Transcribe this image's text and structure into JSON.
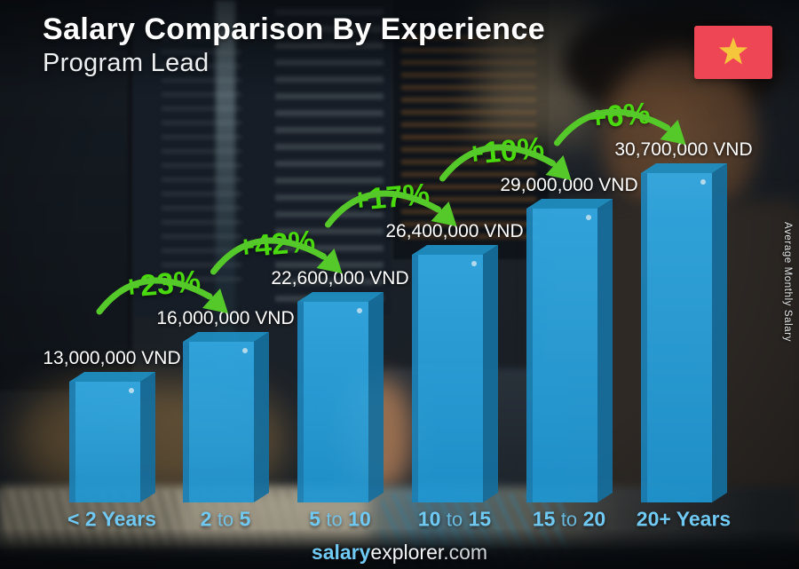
{
  "header": {
    "title": "Salary Comparison By Experience",
    "subtitle": "Program Lead"
  },
  "flag": {
    "country": "Vietnam"
  },
  "footer": {
    "brand_bold": "salary",
    "brand_rest": "explorer",
    "brand_tld": ".com"
  },
  "chart_data": {
    "type": "bar",
    "title": "Salary Comparison By Experience",
    "subtitle": "Program Lead",
    "ylabel": "Average Monthly Salary",
    "currency": "VND",
    "categories": [
      "< 2 Years",
      "2 to 5",
      "5 to 10",
      "10 to 15",
      "15 to 20",
      "20+ Years"
    ],
    "values": [
      13000000,
      16000000,
      22600000,
      26400000,
      29000000,
      30700000
    ],
    "value_labels": [
      "13,000,000 VND",
      "16,000,000 VND",
      "22,600,000 VND",
      "26,400,000 VND",
      "29,000,000 VND",
      "30,700,000 VND"
    ],
    "pct_changes": [
      "+23%",
      "+42%",
      "+17%",
      "+10%",
      "+6%"
    ],
    "legend": "none",
    "grid": "off",
    "colors": {
      "bar_front_light": "#33ade8",
      "bar_front_dark": "#1f97d3",
      "bar_top": "#1e90c4",
      "bar_side": "#156f9e",
      "bar_edge": "#1a7cb0",
      "pct_text_green": "#49d90e",
      "arrow_green": "#56c92a",
      "xlabel_blue": "#70c9f3",
      "flag_red": "#ef4655",
      "flag_star_yellow": "#f5c53c"
    }
  }
}
